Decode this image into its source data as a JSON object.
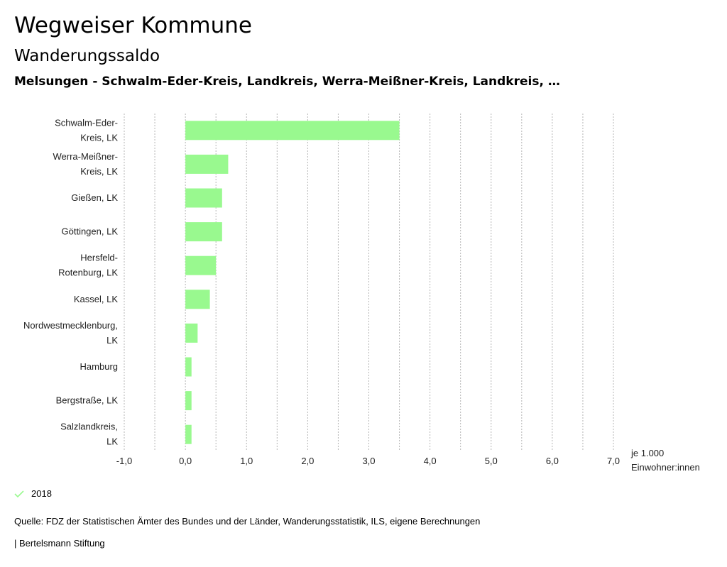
{
  "header": {
    "title": "Wegweiser Kommune",
    "subtitle": "Wanderungssaldo",
    "region": "Melsungen - Schwalm-Eder-Kreis, Landkreis, Werra-Meißner-Kreis, Landkreis, …"
  },
  "chart_data": {
    "type": "bar",
    "orientation": "horizontal",
    "categories": [
      [
        "Schwalm-Eder-",
        "Kreis, LK"
      ],
      [
        "Werra-Meißner-",
        "Kreis, LK"
      ],
      [
        "Gießen, LK"
      ],
      [
        "Göttingen, LK"
      ],
      [
        "Hersfeld-",
        "Rotenburg, LK"
      ],
      [
        "Kassel, LK"
      ],
      [
        "Nordwestmecklenburg,",
        "LK"
      ],
      [
        "Hamburg"
      ],
      [
        "Bergstraße, LK"
      ],
      [
        "Salzlandkreis,",
        "LK"
      ]
    ],
    "series": [
      {
        "name": "2018",
        "color": "#99f98f",
        "values": [
          3.5,
          0.7,
          0.6,
          0.6,
          0.5,
          0.4,
          0.2,
          0.1,
          0.1,
          0.1
        ]
      }
    ],
    "xlim": [
      -1,
      7
    ],
    "ticks": [
      -1,
      0,
      1,
      2,
      3,
      4,
      5,
      6,
      7
    ],
    "tick_labels": [
      "-1,0",
      "0,0",
      "1,0",
      "2,0",
      "3,0",
      "4,0",
      "5,0",
      "6,0",
      "7,0"
    ],
    "unit_label": [
      "je 1.000",
      "Einwohner:innen"
    ],
    "grid": true
  },
  "legend": {
    "label": "2018",
    "color": "#99f98f"
  },
  "footer": {
    "source": "Quelle: FDZ der Statistischen Ämter des Bundes und der Länder, Wanderungsstatistik, ILS, eigene Berechnungen",
    "brand": "| Bertelsmann Stiftung"
  }
}
